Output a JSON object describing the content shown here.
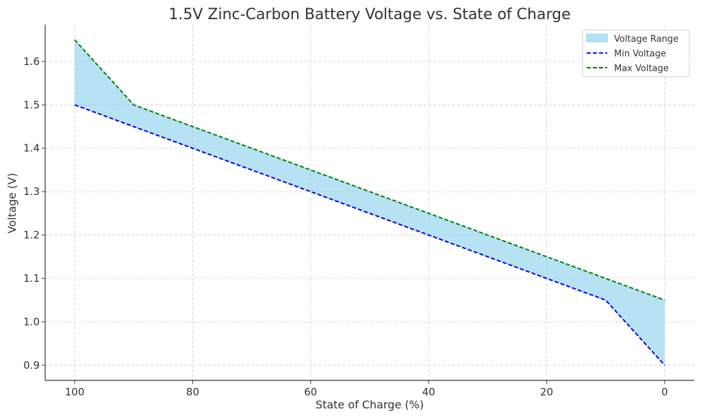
{
  "chart_data": {
    "type": "area",
    "title": "1.5V Zinc-Carbon Battery Voltage vs. State of Charge",
    "xlabel": "State of Charge (%)",
    "ylabel": "Voltage (V)",
    "x_inverted": true,
    "xlim": [
      105,
      -5
    ],
    "ylim": [
      0.865,
      1.685
    ],
    "x_ticks": [
      100,
      80,
      60,
      40,
      20,
      0
    ],
    "x_tick_labels": [
      "100",
      "80",
      "60",
      "40",
      "20",
      "0"
    ],
    "y_ticks": [
      0.9,
      1.0,
      1.1,
      1.2,
      1.3,
      1.4,
      1.5,
      1.6
    ],
    "y_tick_labels": [
      "0.9",
      "1.0",
      "1.1",
      "1.2",
      "1.3",
      "1.4",
      "1.5",
      "1.6"
    ],
    "grid": true,
    "legend_position": "top-right",
    "x": [
      100,
      90,
      10,
      0
    ],
    "series": [
      {
        "name": "Voltage Range",
        "kind": "fill",
        "color": "#87ceeb",
        "lower": [
          1.5,
          1.45,
          1.05,
          0.9
        ],
        "upper": [
          1.65,
          1.5,
          1.1,
          1.05
        ]
      },
      {
        "name": "Min Voltage",
        "kind": "line",
        "style": "dashed",
        "color": "#0000ee",
        "values": [
          1.5,
          1.45,
          1.05,
          0.9
        ]
      },
      {
        "name": "Max Voltage",
        "kind": "line",
        "style": "dashed",
        "color": "#008000",
        "values": [
          1.65,
          1.5,
          1.1,
          1.05
        ]
      }
    ]
  }
}
